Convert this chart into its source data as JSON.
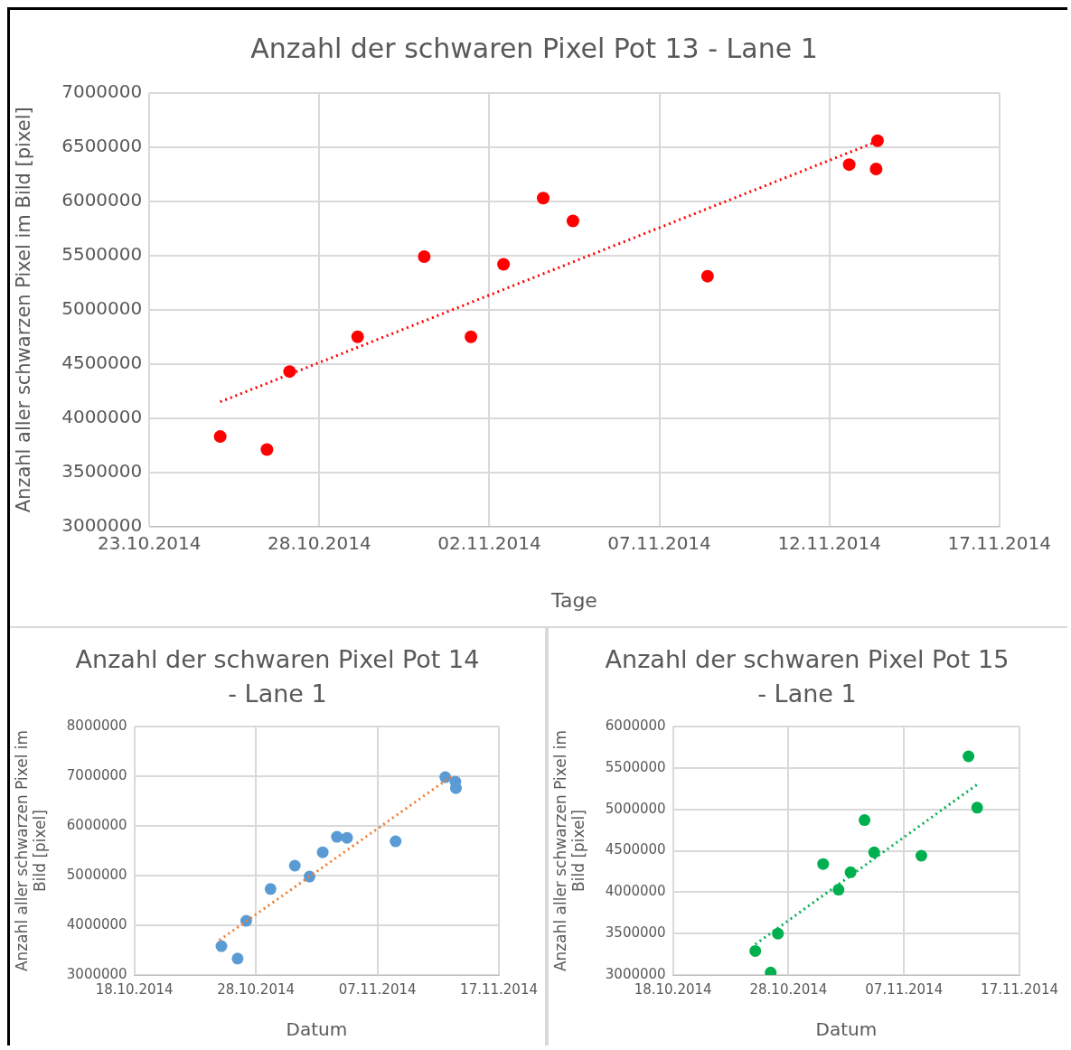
{
  "chart_data": [
    {
      "type": "scatter",
      "title": "Anzahl der schwaren Pixel Pot 13 - Lane 1",
      "xlabel": "Tage",
      "ylabel": "Anzahl aller schwarzen Pixel im Bild [pixel]",
      "marker": "circle",
      "grid": true,
      "legend": false,
      "xlim": [
        "2014-10-23",
        "2014-11-17"
      ],
      "xticks": [
        {
          "value": "2014-10-23",
          "label": "23.10.2014"
        },
        {
          "value": "2014-10-28",
          "label": "28.10.2014"
        },
        {
          "value": "2014-11-02",
          "label": "02.11.2014"
        },
        {
          "value": "2014-11-07",
          "label": "07.11.2014"
        },
        {
          "value": "2014-11-12",
          "label": "12.11.2014"
        },
        {
          "value": "2014-11-17",
          "label": "17.11.2014"
        }
      ],
      "ylim": [
        3000000,
        7000000
      ],
      "yticks": [
        3000000,
        3500000,
        4000000,
        4500000,
        5000000,
        5500000,
        6000000,
        6500000,
        7000000
      ],
      "series": [
        {
          "type": "scatter",
          "color": "#ff0000",
          "x": [
            "2014-10-25T02:00",
            "2014-10-26T11:00",
            "2014-10-27T03:00",
            "2014-10-29T03:00",
            "2014-10-31T02:00",
            "2014-11-01T11:00",
            "2014-11-02T10:00",
            "2014-11-03T14:00",
            "2014-11-04T11:00",
            "2014-11-08T10:00",
            "2014-11-12T14:00",
            "2014-11-13T09:00",
            "2014-11-13T10:00"
          ],
          "values": [
            3830000,
            3710000,
            4430000,
            4750000,
            5490000,
            4750000,
            5420000,
            6030000,
            5820000,
            5310000,
            6340000,
            6300000,
            6560000
          ]
        },
        {
          "type": "line",
          "color": "#ff0000",
          "line_style": "dotted",
          "marker": "none",
          "x": [
            "2014-10-25T02:00",
            "2014-11-13T07:00"
          ],
          "values": [
            4150000,
            6540000
          ]
        }
      ]
    },
    {
      "type": "scatter",
      "title": "Anzahl der schwaren Pixel Pot 14 - Lane 1",
      "xlabel": "Datum",
      "ylabel": "Anzahl aller schwarzen Pixel im Bild [pixel]",
      "marker": "circle",
      "grid": true,
      "legend": false,
      "xlim": [
        "2014-10-18",
        "2014-11-17"
      ],
      "xticks": [
        {
          "value": "2014-10-18",
          "label": "18.10.2014"
        },
        {
          "value": "2014-10-28",
          "label": "28.10.2014"
        },
        {
          "value": "2014-11-07",
          "label": "07.11.2014"
        },
        {
          "value": "2014-11-17",
          "label": "17.11.2014"
        }
      ],
      "ylim": [
        3000000,
        8000000
      ],
      "yticks": [
        3000000,
        4000000,
        5000000,
        6000000,
        7000000,
        8000000
      ],
      "series": [
        {
          "type": "scatter",
          "color": "#5b9bd5",
          "x": [
            "2014-10-25T04:00",
            "2014-10-26T12:00",
            "2014-10-27T05:00",
            "2014-10-29T05:00",
            "2014-10-31T05:00",
            "2014-11-01T10:00",
            "2014-11-02T12:00",
            "2014-11-03T16:00",
            "2014-11-04T12:00",
            "2014-11-08T12:00",
            "2014-11-12T14:00",
            "2014-11-13T10:00",
            "2014-11-13T11:00"
          ],
          "values": [
            3580000,
            3330000,
            4090000,
            4730000,
            5200000,
            4980000,
            5470000,
            5780000,
            5760000,
            5690000,
            6980000,
            6890000,
            6760000
          ]
        },
        {
          "type": "line",
          "color": "#ed7d31",
          "line_style": "dotted",
          "marker": "none",
          "x": [
            "2014-10-25T00:00",
            "2014-11-13T03:00"
          ],
          "values": [
            3700000,
            7000000
          ]
        }
      ]
    },
    {
      "type": "scatter",
      "title": "Anzahl der schwaren Pixel Pot 15 - Lane 1",
      "xlabel": "Datum",
      "ylabel": "Anzahl aller schwarzen Pixel im Bild [pixel]",
      "marker": "circle",
      "grid": true,
      "legend": false,
      "xlim": [
        "2014-10-18",
        "2014-11-17"
      ],
      "xticks": [
        {
          "value": "2014-10-18",
          "label": "18.10.2014"
        },
        {
          "value": "2014-10-28",
          "label": "28.10.2014"
        },
        {
          "value": "2014-11-07",
          "label": "07.11.2014"
        },
        {
          "value": "2014-11-17",
          "label": "17.11.2014"
        }
      ],
      "ylim": [
        3000000,
        6000000
      ],
      "yticks": [
        3000000,
        3500000,
        4000000,
        4500000,
        5000000,
        5500000,
        6000000
      ],
      "series": [
        {
          "type": "scatter",
          "color": "#00b050",
          "x": [
            "2014-10-25T03:00",
            "2014-10-26T11:00",
            "2014-10-27T02:00",
            "2014-10-31T00:00",
            "2014-11-01T08:00",
            "2014-11-02T09:00",
            "2014-11-03T14:00",
            "2014-11-04T10:00",
            "2014-11-08T12:00",
            "2014-11-12T14:00",
            "2014-11-13T08:00"
          ],
          "values": [
            3290000,
            3030000,
            3500000,
            4340000,
            4030000,
            4240000,
            4870000,
            4480000,
            4440000,
            5640000,
            5020000
          ]
        },
        {
          "type": "line",
          "color": "#00b050",
          "line_style": "dotted",
          "marker": "none",
          "x": [
            "2014-10-25T03:00",
            "2014-11-13T08:00"
          ],
          "values": [
            3370000,
            5300000
          ]
        }
      ]
    }
  ]
}
